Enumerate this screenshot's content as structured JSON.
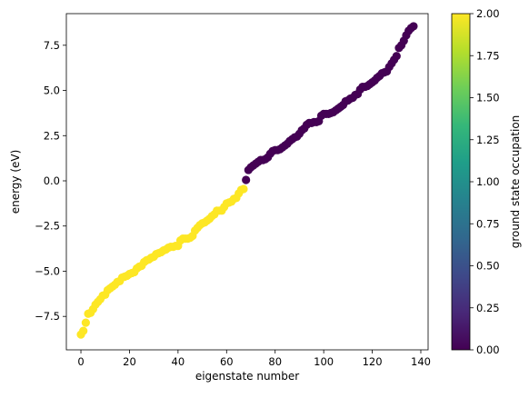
{
  "chart_data": {
    "type": "scatter",
    "title": "",
    "xlabel": "eigenstate number",
    "ylabel": "energy (eV)",
    "xlim": [
      -6,
      143
    ],
    "ylim": [
      -9.35,
      9.25
    ],
    "xticks": [
      0,
      20,
      40,
      60,
      80,
      100,
      120,
      140
    ],
    "xtick_labels": [
      "0",
      "20",
      "40",
      "60",
      "80",
      "100",
      "120",
      "140"
    ],
    "yticks": [
      -7.5,
      -5.0,
      -2.5,
      0.0,
      2.5,
      5.0,
      7.5
    ],
    "ytick_labels": [
      "−7.5",
      "−5.0",
      "−2.5",
      "0.0",
      "2.5",
      "5.0",
      "7.5"
    ],
    "grid": false,
    "marker_color_by": "ground state occupation",
    "colorbar": {
      "label": "ground state occupation",
      "colormap": "viridis",
      "range": [
        0.0,
        2.0
      ],
      "ticks": [
        0.0,
        0.25,
        0.5,
        0.75,
        1.0,
        1.25,
        1.5,
        1.75,
        2.0
      ],
      "tick_labels": [
        "0.00",
        "0.25",
        "0.50",
        "0.75",
        "1.00",
        "1.25",
        "1.50",
        "1.75",
        "2.00"
      ],
      "stops": [
        "#440154",
        "#482878",
        "#3e4989",
        "#31688e",
        "#26828e",
        "#1f9e89",
        "#35b779",
        "#6ece58",
        "#b5de2b",
        "#fde725"
      ]
    },
    "colors": {
      "occupied": "#fde725",
      "unoccupied": "#440154"
    },
    "x": [
      0,
      1,
      2,
      3,
      4,
      5,
      6,
      7,
      8,
      9,
      10,
      11,
      12,
      13,
      14,
      15,
      16,
      17,
      18,
      19,
      20,
      21,
      22,
      23,
      24,
      25,
      26,
      27,
      28,
      29,
      30,
      31,
      32,
      33,
      34,
      35,
      36,
      37,
      38,
      39,
      40,
      41,
      42,
      43,
      44,
      45,
      46,
      47,
      48,
      49,
      50,
      51,
      52,
      53,
      54,
      55,
      56,
      57,
      58,
      59,
      60,
      61,
      62,
      63,
      64,
      65,
      66,
      67,
      68,
      69,
      70,
      71,
      72,
      73,
      74,
      75,
      76,
      77,
      78,
      79,
      80,
      81,
      82,
      83,
      84,
      85,
      86,
      87,
      88,
      89,
      90,
      91,
      92,
      93,
      94,
      95,
      96,
      97,
      98,
      99,
      100,
      101,
      102,
      103,
      104,
      105,
      106,
      107,
      108,
      109,
      110,
      111,
      112,
      113,
      114,
      115,
      116,
      117,
      118,
      119,
      120,
      121,
      122,
      123,
      124,
      125,
      126,
      127,
      128,
      129,
      130,
      131,
      132,
      133,
      134,
      135,
      136,
      137
    ],
    "y": [
      -8.5,
      -8.3,
      -7.85,
      -7.35,
      -7.3,
      -7.1,
      -6.85,
      -6.7,
      -6.55,
      -6.35,
      -6.3,
      -6.05,
      -5.95,
      -5.85,
      -5.75,
      -5.6,
      -5.55,
      -5.35,
      -5.3,
      -5.25,
      -5.15,
      -5.1,
      -5.05,
      -4.85,
      -4.75,
      -4.7,
      -4.5,
      -4.4,
      -4.35,
      -4.25,
      -4.2,
      -4.05,
      -4.0,
      -3.95,
      -3.85,
      -3.8,
      -3.7,
      -3.65,
      -3.65,
      -3.6,
      -3.6,
      -3.3,
      -3.2,
      -3.2,
      -3.2,
      -3.15,
      -3.05,
      -2.75,
      -2.6,
      -2.45,
      -2.35,
      -2.3,
      -2.2,
      -2.1,
      -1.95,
      -1.85,
      -1.65,
      -1.65,
      -1.65,
      -1.45,
      -1.25,
      -1.2,
      -1.15,
      -1.0,
      -0.95,
      -0.7,
      -0.5,
      -0.45,
      0.05,
      0.6,
      0.75,
      0.85,
      0.95,
      1.05,
      1.15,
      1.15,
      1.2,
      1.3,
      1.5,
      1.65,
      1.7,
      1.7,
      1.75,
      1.85,
      1.95,
      2.05,
      2.2,
      2.3,
      2.4,
      2.45,
      2.6,
      2.8,
      2.9,
      3.1,
      3.2,
      3.2,
      3.25,
      3.25,
      3.3,
      3.6,
      3.7,
      3.7,
      3.7,
      3.75,
      3.8,
      3.9,
      4.0,
      4.1,
      4.2,
      4.4,
      4.45,
      4.55,
      4.6,
      4.75,
      4.8,
      5.05,
      5.2,
      5.2,
      5.25,
      5.35,
      5.45,
      5.55,
      5.7,
      5.8,
      5.95,
      6.0,
      6.05,
      6.3,
      6.5,
      6.7,
      6.9,
      7.35,
      7.5,
      7.75,
      8.05,
      8.3,
      8.45,
      8.55
    ],
    "occupation": [
      2,
      2,
      2,
      2,
      2,
      2,
      2,
      2,
      2,
      2,
      2,
      2,
      2,
      2,
      2,
      2,
      2,
      2,
      2,
      2,
      2,
      2,
      2,
      2,
      2,
      2,
      2,
      2,
      2,
      2,
      2,
      2,
      2,
      2,
      2,
      2,
      2,
      2,
      2,
      2,
      2,
      2,
      2,
      2,
      2,
      2,
      2,
      2,
      2,
      2,
      2,
      2,
      2,
      2,
      2,
      2,
      2,
      2,
      2,
      2,
      2,
      2,
      2,
      2,
      2,
      2,
      2,
      2,
      0,
      0,
      0,
      0,
      0,
      0,
      0,
      0,
      0,
      0,
      0,
      0,
      0,
      0,
      0,
      0,
      0,
      0,
      0,
      0,
      0,
      0,
      0,
      0,
      0,
      0,
      0,
      0,
      0,
      0,
      0,
      0,
      0,
      0,
      0,
      0,
      0,
      0,
      0,
      0,
      0,
      0,
      0,
      0,
      0,
      0,
      0,
      0,
      0,
      0,
      0,
      0,
      0,
      0,
      0,
      0,
      0,
      0,
      0,
      0,
      0,
      0,
      0,
      0,
      0,
      0,
      0,
      0,
      0,
      0
    ]
  }
}
